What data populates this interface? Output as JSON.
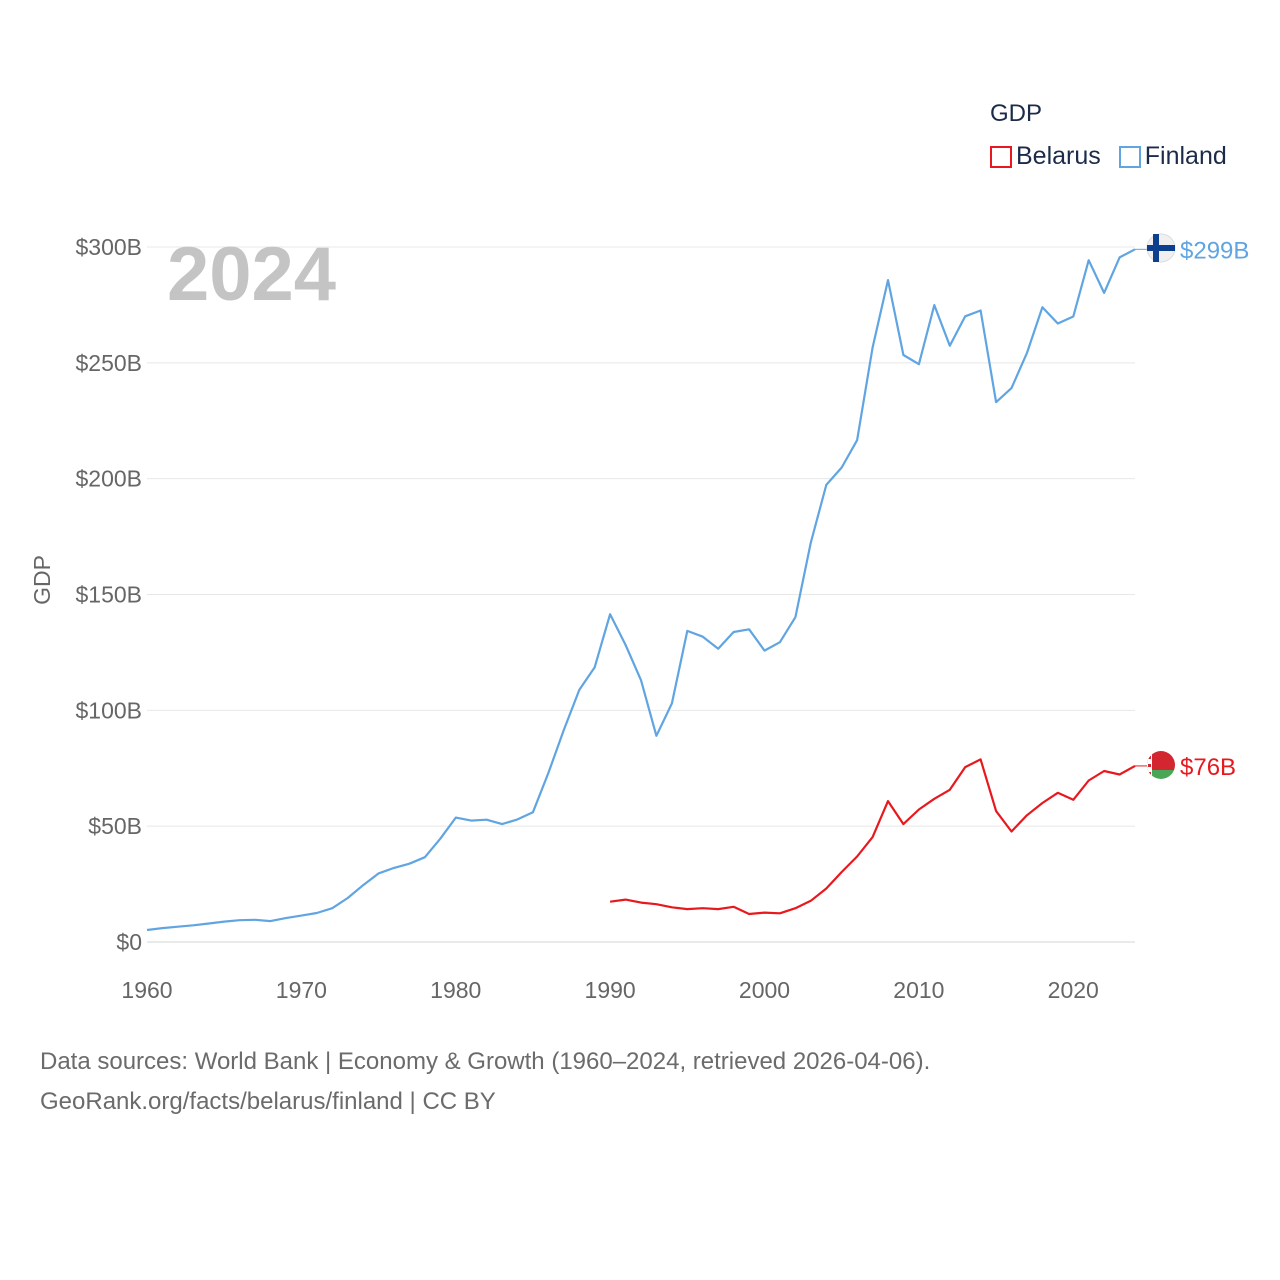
{
  "legend": {
    "title": "GDP",
    "items": [
      {
        "label": "Belarus",
        "color": "#e8191e"
      },
      {
        "label": "Finland",
        "color": "#60a5e2"
      }
    ]
  },
  "year_label": "2024",
  "footer": {
    "line1": "Data sources: World Bank | Economy & Growth (1960–2024, retrieved 2026-04-06).",
    "line2": "GeoRank.org/facts/belarus/finland | CC BY"
  },
  "chart_data": {
    "type": "line",
    "title": "",
    "xlabel": "",
    "ylabel": "GDP",
    "xlim": [
      1960,
      2024
    ],
    "ylim": [
      0,
      300
    ],
    "xticks": [
      1960,
      1970,
      1980,
      1990,
      2000,
      2010,
      2020
    ],
    "yticks": [
      {
        "value": 0,
        "label": "$0"
      },
      {
        "value": 50,
        "label": "$50B"
      },
      {
        "value": 100,
        "label": "$100B"
      },
      {
        "value": 150,
        "label": "$150B"
      },
      {
        "value": 200,
        "label": "$200B"
      },
      {
        "value": 250,
        "label": "$250B"
      },
      {
        "value": 300,
        "label": "$300B"
      }
    ],
    "grid": true,
    "units": "billions USD",
    "series": [
      {
        "name": "Finland",
        "color": "#60a5e2",
        "end_label": "$299B",
        "x": [
          1960,
          1961,
          1962,
          1963,
          1964,
          1965,
          1966,
          1967,
          1968,
          1969,
          1970,
          1971,
          1972,
          1973,
          1974,
          1975,
          1976,
          1977,
          1978,
          1979,
          1980,
          1981,
          1982,
          1983,
          1984,
          1985,
          1986,
          1987,
          1988,
          1989,
          1990,
          1991,
          1992,
          1993,
          1994,
          1995,
          1996,
          1997,
          1998,
          1999,
          2000,
          2001,
          2002,
          2003,
          2004,
          2005,
          2006,
          2007,
          2008,
          2009,
          2010,
          2011,
          2012,
          2013,
          2014,
          2015,
          2016,
          2017,
          2018,
          2019,
          2020,
          2021,
          2022,
          2023,
          2024
        ],
        "values": [
          5.2,
          6.0,
          6.6,
          7.2,
          8.0,
          8.8,
          9.4,
          9.6,
          9.0,
          10.3,
          11.4,
          12.5,
          14.6,
          19.0,
          24.5,
          29.6,
          32.0,
          33.8,
          36.6,
          44.6,
          53.7,
          52.4,
          52.8,
          50.9,
          52.9,
          56.0,
          73.0,
          91.5,
          108.8,
          118.6,
          141.5,
          128.2,
          113.0,
          89.0,
          103.0,
          134.3,
          131.8,
          126.6,
          133.8,
          135.0,
          125.8,
          129.4,
          140.2,
          172.4,
          197.3,
          204.8,
          216.6,
          256.6,
          285.7,
          253.4,
          249.4,
          274.9,
          257.4,
          270.1,
          272.6,
          233.0,
          239.1,
          254.2,
          274.0,
          267.0,
          270.0,
          294.3,
          280.2,
          295.5,
          299.0
        ]
      },
      {
        "name": "Belarus",
        "color": "#e8191e",
        "end_label": "$76B",
        "x": [
          1990,
          1991,
          1992,
          1993,
          1994,
          1995,
          1996,
          1997,
          1998,
          1999,
          2000,
          2001,
          2002,
          2003,
          2004,
          2005,
          2006,
          2007,
          2008,
          2009,
          2010,
          2011,
          2012,
          2013,
          2014,
          2015,
          2016,
          2017,
          2018,
          2019,
          2020,
          2021,
          2022,
          2023,
          2024
        ],
        "values": [
          17.4,
          18.3,
          17.0,
          16.3,
          15.0,
          14.2,
          14.6,
          14.2,
          15.2,
          12.1,
          12.7,
          12.4,
          14.6,
          17.8,
          23.1,
          30.2,
          36.9,
          45.3,
          60.8,
          50.9,
          57.2,
          61.8,
          65.7,
          75.5,
          78.8,
          56.5,
          47.7,
          54.7,
          60.0,
          64.4,
          61.4,
          69.7,
          73.8,
          72.3,
          76.0
        ]
      }
    ]
  }
}
